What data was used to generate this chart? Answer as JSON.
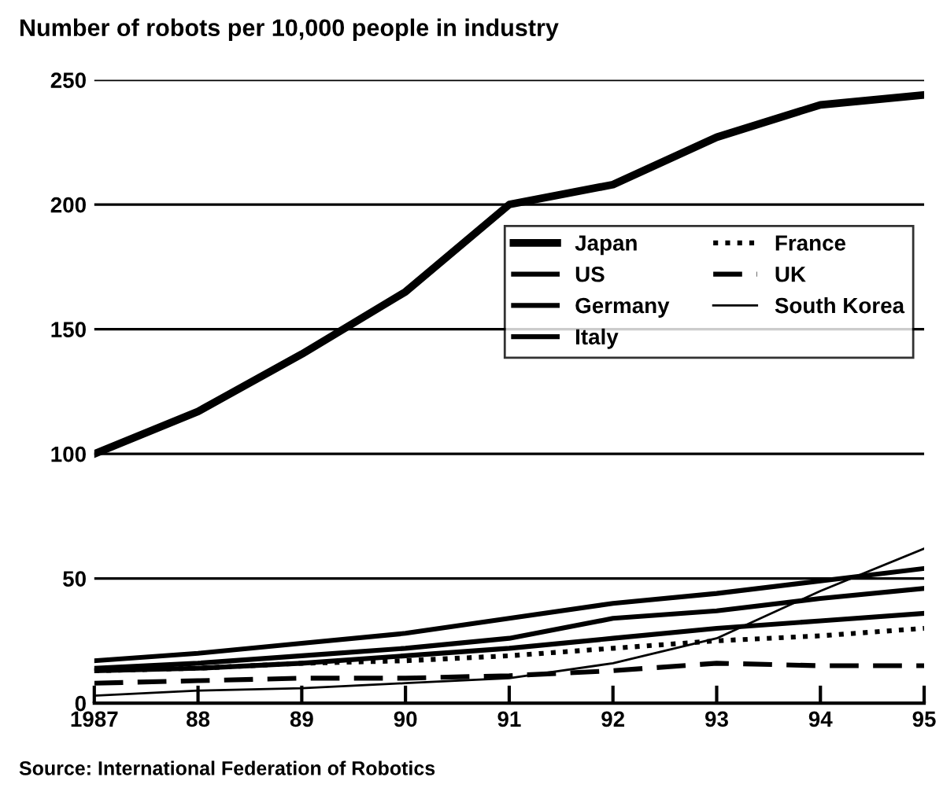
{
  "chart_data": {
    "type": "line",
    "title": "Number of robots per 10,000 people in industry",
    "x": [
      1987,
      1988,
      1989,
      1990,
      1991,
      1992,
      1993,
      1994,
      1995
    ],
    "series": [
      {
        "name": "Japan",
        "color": "#000000",
        "line_style": "solid",
        "values": [
          100,
          117,
          140,
          165,
          200,
          208,
          227,
          240,
          244
        ]
      },
      {
        "name": "US",
        "color": "#000000",
        "line_style": "solid",
        "values": [
          13,
          14,
          16,
          19,
          22,
          26,
          30,
          33,
          36
        ]
      },
      {
        "name": "Germany",
        "color": "#000000",
        "line_style": "solid",
        "values": [
          17,
          20,
          24,
          28,
          34,
          40,
          44,
          49,
          54
        ]
      },
      {
        "name": "Italy",
        "color": "#000000",
        "line_style": "solid",
        "values": [
          14,
          16,
          19,
          22,
          26,
          34,
          37,
          42,
          46
        ]
      },
      {
        "name": "France",
        "color": "#000000",
        "line_style": "dotted",
        "values": [
          13,
          14,
          16,
          17,
          19,
          22,
          25,
          27,
          30
        ]
      },
      {
        "name": "UK",
        "color": "#000000",
        "line_style": "dashed",
        "values": [
          8,
          9,
          10,
          10,
          11,
          13,
          16,
          15,
          15
        ]
      },
      {
        "name": "South Korea",
        "color": "#000000",
        "line_style": "solid",
        "values": [
          3,
          5,
          6,
          8,
          10,
          16,
          26,
          45,
          62
        ]
      }
    ],
    "xlim": [
      1987,
      1995
    ],
    "xticks": [
      {
        "value": 1987,
        "label": "1987"
      },
      {
        "value": 1988,
        "label": "88"
      },
      {
        "value": 1989,
        "label": "89"
      },
      {
        "value": 1990,
        "label": "90"
      },
      {
        "value": 1991,
        "label": "91"
      },
      {
        "value": 1992,
        "label": "92"
      },
      {
        "value": 1993,
        "label": "93"
      },
      {
        "value": 1994,
        "label": "94"
      },
      {
        "value": 1995,
        "label": "95"
      }
    ],
    "ylim": [
      0,
      250
    ],
    "yticks": [
      0,
      50,
      100,
      150,
      200,
      250
    ],
    "grid": "y",
    "legend": "center right",
    "marker": "none",
    "annotations": [
      "Source: International Federation of Robotics"
    ]
  }
}
